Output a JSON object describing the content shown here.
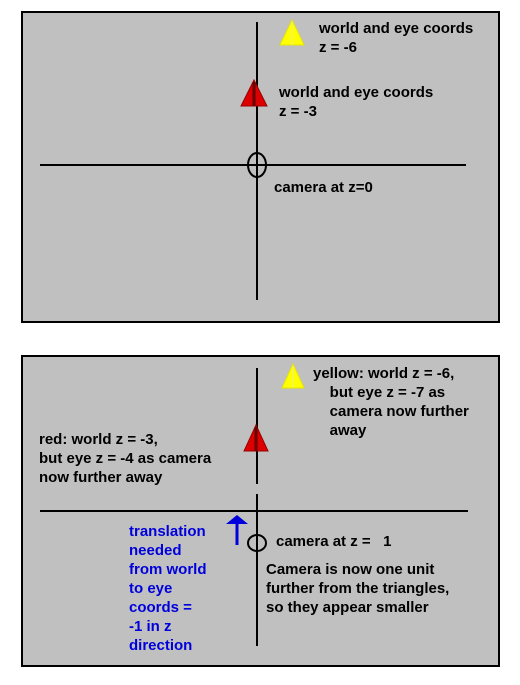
{
  "panel_top": {
    "labels": {
      "yellow": "world and eye coords\nz = -6",
      "red": "world and eye coords\nz = -3",
      "camera": "camera at z=0"
    }
  },
  "panel_bottom": {
    "labels": {
      "yellow": "yellow: world z = -6,\n    but eye z = -7 as\n    camera now further\n    away",
      "red": "red: world z = -3,\nbut eye z = -4 as camera\nnow further away",
      "translation": "translation\nneeded\nfrom world\nto eye\ncoords =\n-1 in z\ndirection",
      "camera": "camera at z =   1",
      "note": "Camera is now one unit\nfurther from the triangles,\nso they appear smaller"
    }
  },
  "colors": {
    "panel_bg": "#c0c0c0",
    "yellow_triangle": "#ffff00",
    "red_triangle": "#dd0000",
    "annotation_blue": "#0000dd"
  }
}
